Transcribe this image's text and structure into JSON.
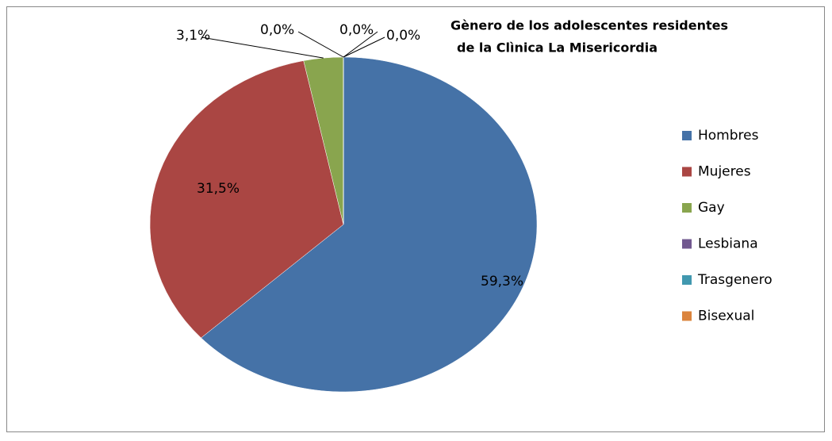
{
  "chart_data": {
    "type": "pie",
    "title": [
      "Gènero de los adolescentes residentes",
      "de la Clìnica La Misericordia"
    ],
    "categories": [
      "Hombres",
      "Mujeres",
      "Gay",
      "Lesbiana",
      "Trasgenero",
      "Bisexual"
    ],
    "values": [
      59.3,
      31.5,
      3.1,
      0,
      0,
      0
    ],
    "value_labels": [
      "59,3%",
      "31,5%",
      "3,1%",
      "0,0%",
      "0,0%",
      "0,0%"
    ],
    "colors": [
      "#4572a7",
      "#aa4643",
      "#89a54e",
      "#71588f",
      "#4198af",
      "#db843d"
    ],
    "legend": "right"
  }
}
